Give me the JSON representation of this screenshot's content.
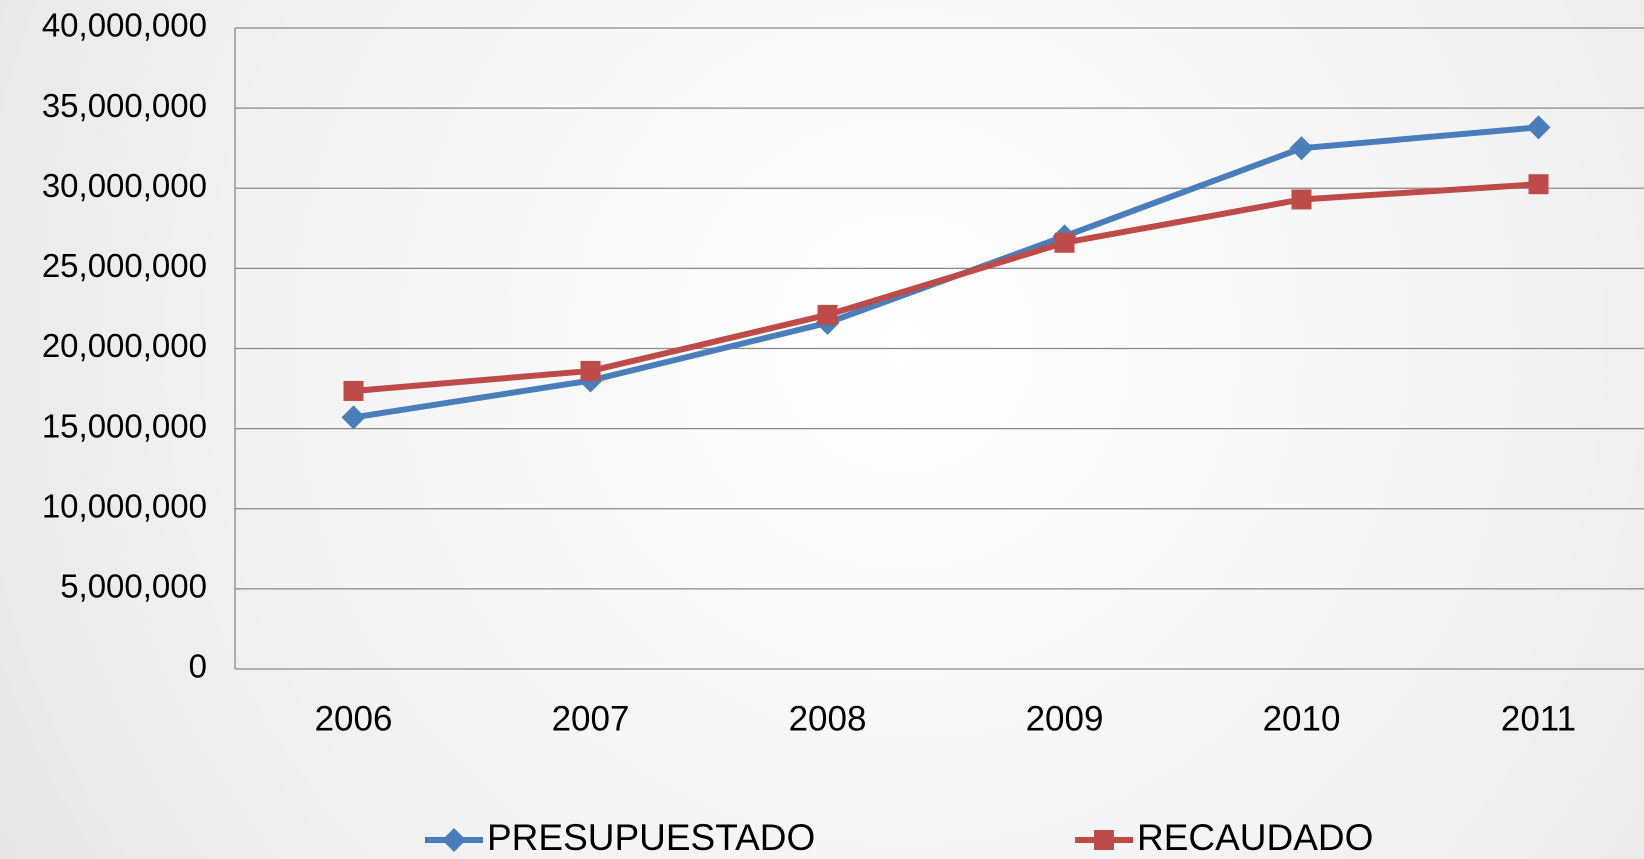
{
  "chart_data": {
    "type": "line",
    "categories": [
      "2006",
      "2007",
      "2008",
      "2009",
      "2010",
      "2011"
    ],
    "series": [
      {
        "name": "PRESUPUESTADO",
        "color": "#4a7ebb",
        "marker": "diamond",
        "values": [
          15700000,
          18000000,
          21600000,
          27000000,
          32500000,
          33800000
        ]
      },
      {
        "name": "RECAUDADO",
        "color": "#be4b48",
        "marker": "square",
        "values": [
          17350000,
          18600000,
          22100000,
          26600000,
          29300000,
          30250000
        ]
      }
    ],
    "ylim": [
      0,
      40000000
    ],
    "yticks": [
      0,
      {
        "value": 5000000,
        "label": "5,000,000"
      },
      {
        "value": 10000000,
        "label": "10,000,000"
      },
      {
        "value": 15000000,
        "label": "15,000,000"
      },
      {
        "value": 20000000,
        "label": "20,000,000"
      },
      {
        "value": 25000000,
        "label": "25,000,000"
      },
      {
        "value": 30000000,
        "label": "30,000,000"
      },
      {
        "value": 35000000,
        "label": "35,000,000"
      },
      {
        "value": 40000000,
        "label": "40,000,000"
      }
    ],
    "grid": true,
    "legend": "bottom"
  }
}
